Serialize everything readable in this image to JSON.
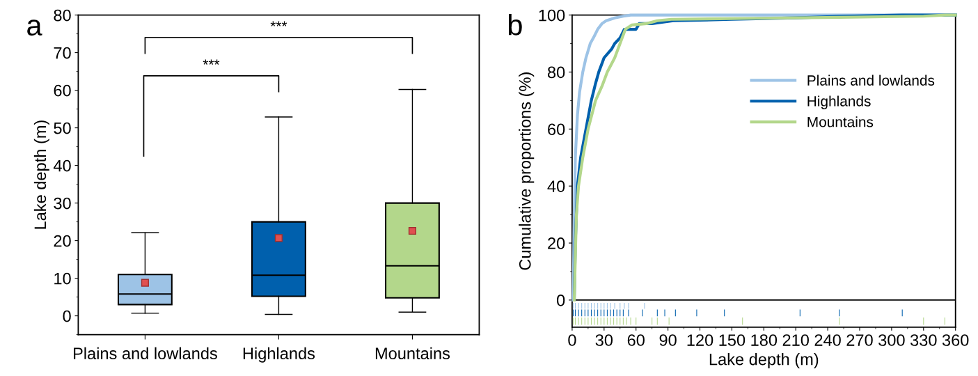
{
  "chart_data": [
    {
      "type": "box",
      "title": "a",
      "ylabel": "Lake depth (m)",
      "categories": [
        "Plains and lowlands",
        "Highlands",
        "Mountains"
      ],
      "colors": [
        "#9dc3e6",
        "#0060ad",
        "#b3d78b"
      ],
      "boxes": [
        {
          "low": 0.7,
          "q1": 3,
          "median": 5.8,
          "q3": 11,
          "high": 22.1,
          "mean": 8.8
        },
        {
          "low": 0.4,
          "q1": 5.2,
          "median": 10.8,
          "q3": 25,
          "high": 52.9,
          "mean": 20.7
        },
        {
          "low": 1,
          "q1": 4.8,
          "median": 13.3,
          "q3": 30,
          "high": 60.2,
          "mean": 22.6
        }
      ],
      "ylim": [
        -5,
        80
      ],
      "yticks": [
        0,
        10,
        20,
        30,
        40,
        50,
        60,
        70,
        80
      ],
      "grid": false,
      "annotations": [
        "***",
        "***"
      ]
    },
    {
      "type": "line",
      "title": "b",
      "xlabel": "Lake depth (m)",
      "ylabel": "Cumulative proportions (%)",
      "xlim": [
        0,
        360
      ],
      "xticks": [
        0,
        30,
        60,
        90,
        120,
        150,
        180,
        210,
        240,
        270,
        300,
        330,
        360
      ],
      "ylim": [
        -9.5,
        100
      ],
      "yticks": [
        0,
        20,
        40,
        60,
        80,
        100
      ],
      "grid": false,
      "legend": "top right",
      "ref_lines": [
        {
          "axis": "y",
          "value": 0,
          "color": "#000000"
        }
      ],
      "series": [
        {
          "name": "Plains and lowlands",
          "color": "#9dc3e6",
          "x": [
            1,
            2,
            3,
            5,
            7,
            10,
            13,
            17,
            20,
            24,
            28,
            32,
            40,
            48,
            55,
            360
          ],
          "values": [
            0,
            30,
            50,
            65,
            73,
            80,
            85,
            90,
            92,
            95,
            97,
            98,
            99,
            99.6,
            100,
            100
          ]
        },
        {
          "name": "Highlands",
          "color": "#0060ad",
          "x": [
            2,
            3,
            5,
            8,
            13,
            18,
            22,
            25,
            30,
            37,
            40,
            45,
            49,
            60,
            63,
            75,
            95,
            150,
            210,
            250,
            310,
            360
          ],
          "values": [
            0,
            20,
            40,
            50,
            60,
            70,
            76,
            80,
            85,
            88,
            90,
            92,
            95,
            95,
            97,
            97,
            98,
            98.5,
            99,
            99.5,
            100,
            100
          ]
        },
        {
          "name": "Mountains",
          "color": "#b3d78b",
          "x": [
            2,
            4,
            6,
            10,
            15,
            22,
            28,
            33,
            40,
            45,
            50,
            56,
            70,
            80,
            93,
            160,
            251,
            330,
            350,
            360
          ],
          "values": [
            0,
            30,
            40,
            50,
            60,
            70,
            75,
            80,
            85,
            90,
            95,
            96.5,
            97,
            98,
            98.5,
            98.8,
            99.2,
            99.6,
            100,
            100
          ]
        },
        {
          "type": "bar",
          "color": "#9dc3e6",
          "x": [
            1,
            3,
            6,
            9,
            12,
            15,
            18,
            21,
            24,
            27,
            30,
            33,
            36,
            40,
            45,
            49,
            53,
            68
          ],
          "values": [
            2.1,
            2.1,
            2.1,
            2.1,
            2.1,
            2.1,
            2.1,
            2.1,
            2.1,
            2.1,
            2.1,
            2.1,
            2.1,
            2.1,
            2.1,
            2.1,
            2.1,
            2.1
          ],
          "base": [
            -3.1,
            -3.1,
            -3.1,
            -3.1,
            -3.1,
            -3.1,
            -3.1,
            -3.1,
            -3.1,
            -3.1,
            -3.1,
            -3.1,
            -3.1,
            -3.1,
            -3.1,
            -3.1,
            -3.1,
            -3.1
          ]
        },
        {
          "type": "bar",
          "color": "#0060ad",
          "x": [
            1,
            3,
            6,
            9,
            12,
            15,
            18,
            21,
            24,
            27,
            30,
            33,
            36,
            39,
            42,
            45,
            48,
            53,
            66,
            80,
            87,
            97,
            117,
            143,
            214,
            251,
            310
          ],
          "values": [
            2.4,
            2.4,
            2.4,
            2.4,
            2.4,
            2.4,
            2.4,
            2.4,
            2.4,
            2.4,
            2.4,
            2.4,
            2.4,
            2.4,
            2.4,
            2.4,
            2.4,
            2.4,
            2.4,
            2.4,
            2.4,
            2.4,
            2.4,
            2.4,
            2.4,
            2.4,
            2.4
          ],
          "base": [
            -5.7,
            -5.7,
            -5.7,
            -5.7,
            -5.7,
            -5.7,
            -5.7,
            -5.7,
            -5.7,
            -5.7,
            -5.7,
            -5.7,
            -5.7,
            -5.7,
            -5.7,
            -5.7,
            -5.7,
            -5.7,
            -5.7,
            -5.7,
            -5.7,
            -5.7,
            -5.7,
            -5.7,
            -5.7,
            -5.7,
            -5.7
          ]
        },
        {
          "type": "bar",
          "color": "#b3d78b",
          "x": [
            1,
            3,
            6,
            9,
            12,
            15,
            18,
            21,
            24,
            27,
            30,
            33,
            36,
            39,
            42,
            45,
            48,
            51,
            55,
            60,
            75,
            80,
            91,
            160,
            251,
            330,
            350
          ],
          "values": [
            2.6,
            2.6,
            2.6,
            2.6,
            2.6,
            2.6,
            2.6,
            2.6,
            2.6,
            2.6,
            2.6,
            2.6,
            2.6,
            2.6,
            2.6,
            2.6,
            2.6,
            2.6,
            2.6,
            2.6,
            2.6,
            2.6,
            2.6,
            2.6,
            2.6,
            2.6,
            2.6
          ],
          "base": [
            -8.7,
            -8.7,
            -8.7,
            -8.7,
            -8.7,
            -8.7,
            -8.7,
            -8.7,
            -8.7,
            -8.7,
            -8.7,
            -8.7,
            -8.7,
            -8.7,
            -8.7,
            -8.7,
            -8.7,
            -8.7,
            -8.7,
            -8.7,
            -8.7,
            -8.7,
            -8.7,
            -8.7,
            -8.7,
            -8.7,
            -8.7
          ]
        }
      ]
    }
  ]
}
